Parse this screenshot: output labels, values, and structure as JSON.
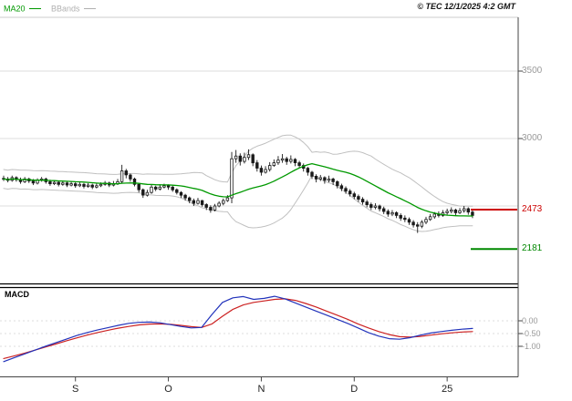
{
  "header": {
    "legend": [
      {
        "label": "MA20",
        "color": "#009900"
      },
      {
        "label": "BBands",
        "color": "#b0b0b0"
      }
    ],
    "copyright": "© TEC 12/1/2025 4:2 GMT"
  },
  "chart_data": {
    "type": "candlestick",
    "title": "",
    "ylim": [
      1900,
      3900
    ],
    "price_gridlines": [
      3500,
      3000,
      2500
    ],
    "candle_color": "#1a1a1a",
    "overlays": {
      "ma20_color": "#009900",
      "bbands_color": "#c0c0c0",
      "ma_period": 20,
      "bb_mult": 2
    },
    "price_axis": {
      "ticks": [
        {
          "text": "3500",
          "value": 3500
        },
        {
          "text": "3000",
          "value": 3000
        }
      ],
      "markers": [
        {
          "text": "2473",
          "value": 2473,
          "color": "#cc0000"
        },
        {
          "text": "2181",
          "value": 2181,
          "color": "#008800"
        }
      ]
    },
    "time_axis": {
      "ticks": [
        {
          "text": "S",
          "index": 17
        },
        {
          "text": "O",
          "index": 39
        },
        {
          "text": "N",
          "index": 61
        },
        {
          "text": "D",
          "index": 83
        },
        {
          "text": "25",
          "index": 105
        }
      ]
    },
    "candles_ohlc": [
      [
        2705,
        2725,
        2685,
        2700
      ],
      [
        2700,
        2715,
        2675,
        2690
      ],
      [
        2690,
        2725,
        2680,
        2710
      ],
      [
        2710,
        2720,
        2680,
        2695
      ],
      [
        2695,
        2710,
        2665,
        2680
      ],
      [
        2680,
        2715,
        2670,
        2700
      ],
      [
        2700,
        2710,
        2670,
        2685
      ],
      [
        2685,
        2700,
        2655,
        2670
      ],
      [
        2670,
        2705,
        2660,
        2690
      ],
      [
        2690,
        2715,
        2680,
        2700
      ],
      [
        2700,
        2710,
        2665,
        2680
      ],
      [
        2680,
        2695,
        2650,
        2665
      ],
      [
        2665,
        2690,
        2655,
        2675
      ],
      [
        2675,
        2685,
        2645,
        2660
      ],
      [
        2660,
        2685,
        2650,
        2670
      ],
      [
        2670,
        2680,
        2640,
        2655
      ],
      [
        2655,
        2680,
        2645,
        2665
      ],
      [
        2665,
        2675,
        2635,
        2650
      ],
      [
        2650,
        2680,
        2640,
        2660
      ],
      [
        2660,
        2670,
        2630,
        2645
      ],
      [
        2645,
        2670,
        2635,
        2655
      ],
      [
        2655,
        2665,
        2625,
        2640
      ],
      [
        2640,
        2670,
        2630,
        2650
      ],
      [
        2650,
        2675,
        2640,
        2660
      ],
      [
        2660,
        2685,
        2650,
        2670
      ],
      [
        2670,
        2680,
        2640,
        2655
      ],
      [
        2655,
        2685,
        2645,
        2665
      ],
      [
        2665,
        2700,
        2655,
        2680
      ],
      [
        2680,
        2805,
        2670,
        2760
      ],
      [
        2760,
        2775,
        2705,
        2730
      ],
      [
        2730,
        2740,
        2680,
        2700
      ],
      [
        2700,
        2710,
        2645,
        2660
      ],
      [
        2660,
        2670,
        2600,
        2620
      ],
      [
        2620,
        2630,
        2560,
        2580
      ],
      [
        2580,
        2620,
        2570,
        2600
      ],
      [
        2600,
        2655,
        2590,
        2640
      ],
      [
        2640,
        2650,
        2610,
        2625
      ],
      [
        2625,
        2660,
        2615,
        2640
      ],
      [
        2640,
        2665,
        2630,
        2650
      ],
      [
        2650,
        2660,
        2620,
        2640
      ],
      [
        2640,
        2650,
        2605,
        2620
      ],
      [
        2620,
        2630,
        2585,
        2600
      ],
      [
        2600,
        2610,
        2560,
        2580
      ],
      [
        2580,
        2590,
        2540,
        2560
      ],
      [
        2560,
        2570,
        2520,
        2540
      ],
      [
        2540,
        2555,
        2500,
        2520
      ],
      [
        2520,
        2560,
        2510,
        2540
      ],
      [
        2540,
        2545,
        2495,
        2510
      ],
      [
        2510,
        2520,
        2470,
        2490
      ],
      [
        2490,
        2505,
        2450,
        2470
      ],
      [
        2470,
        2515,
        2460,
        2500
      ],
      [
        2500,
        2535,
        2490,
        2520
      ],
      [
        2520,
        2555,
        2505,
        2540
      ],
      [
        2540,
        2580,
        2530,
        2560
      ],
      [
        2560,
        2900,
        2520,
        2850
      ],
      [
        2850,
        2915,
        2820,
        2870
      ],
      [
        2870,
        2890,
        2800,
        2830
      ],
      [
        2830,
        2895,
        2815,
        2860
      ],
      [
        2860,
        2920,
        2840,
        2880
      ],
      [
        2880,
        2890,
        2795,
        2820
      ],
      [
        2820,
        2840,
        2755,
        2780
      ],
      [
        2780,
        2800,
        2725,
        2750
      ],
      [
        2750,
        2795,
        2740,
        2770
      ],
      [
        2770,
        2825,
        2755,
        2800
      ],
      [
        2800,
        2845,
        2790,
        2820
      ],
      [
        2820,
        2870,
        2805,
        2840
      ],
      [
        2840,
        2885,
        2820,
        2850
      ],
      [
        2850,
        2865,
        2805,
        2830
      ],
      [
        2830,
        2875,
        2815,
        2845
      ],
      [
        2845,
        2855,
        2795,
        2820
      ],
      [
        2820,
        2835,
        2780,
        2800
      ],
      [
        2800,
        2815,
        2755,
        2780
      ],
      [
        2780,
        2790,
        2725,
        2750
      ],
      [
        2750,
        2760,
        2700,
        2720
      ],
      [
        2720,
        2735,
        2675,
        2700
      ],
      [
        2700,
        2730,
        2685,
        2710
      ],
      [
        2710,
        2720,
        2665,
        2690
      ],
      [
        2690,
        2725,
        2675,
        2700
      ],
      [
        2700,
        2710,
        2655,
        2680
      ],
      [
        2680,
        2690,
        2630,
        2650
      ],
      [
        2650,
        2665,
        2610,
        2630
      ],
      [
        2630,
        2645,
        2590,
        2610
      ],
      [
        2610,
        2625,
        2570,
        2590
      ],
      [
        2590,
        2605,
        2550,
        2570
      ],
      [
        2570,
        2585,
        2530,
        2550
      ],
      [
        2550,
        2565,
        2510,
        2530
      ],
      [
        2530,
        2545,
        2490,
        2510
      ],
      [
        2510,
        2525,
        2470,
        2490
      ],
      [
        2490,
        2520,
        2475,
        2500
      ],
      [
        2500,
        2510,
        2460,
        2480
      ],
      [
        2480,
        2495,
        2440,
        2460
      ],
      [
        2460,
        2475,
        2420,
        2440
      ],
      [
        2440,
        2470,
        2425,
        2450
      ],
      [
        2450,
        2460,
        2410,
        2430
      ],
      [
        2430,
        2445,
        2390,
        2410
      ],
      [
        2410,
        2430,
        2380,
        2400
      ],
      [
        2400,
        2415,
        2360,
        2380
      ],
      [
        2380,
        2395,
        2340,
        2360
      ],
      [
        2360,
        2380,
        2300,
        2350
      ],
      [
        2350,
        2395,
        2335,
        2380
      ],
      [
        2380,
        2420,
        2365,
        2400
      ],
      [
        2400,
        2440,
        2390,
        2420
      ],
      [
        2420,
        2455,
        2405,
        2440
      ],
      [
        2440,
        2460,
        2415,
        2430
      ],
      [
        2430,
        2470,
        2420,
        2450
      ],
      [
        2450,
        2480,
        2435,
        2460
      ],
      [
        2460,
        2490,
        2445,
        2470
      ],
      [
        2470,
        2480,
        2430,
        2450
      ],
      [
        2450,
        2485,
        2440,
        2465
      ],
      [
        2465,
        2500,
        2450,
        2480
      ],
      [
        2480,
        2490,
        2435,
        2455
      ],
      [
        2455,
        2470,
        2410,
        2430
      ]
    ],
    "macd": {
      "label": "MACD",
      "ylim": [
        -2.1,
        1.3
      ],
      "macd_color": "#2233bb",
      "signal_color": "#cc2222",
      "ticks": [
        {
          "text": "0.00",
          "value": 0
        },
        {
          "text": "-0.50",
          "value": -0.5
        },
        {
          "text": "-1.00",
          "value": -1
        }
      ],
      "macd_line": [
        -1.6,
        -1.45,
        -1.3,
        -1.15,
        -1.0,
        -0.86,
        -0.72,
        -0.58,
        -0.46,
        -0.36,
        -0.27,
        -0.18,
        -0.1,
        -0.06,
        -0.05,
        -0.08,
        -0.15,
        -0.22,
        -0.28,
        -0.26,
        0.25,
        0.72,
        0.9,
        0.95,
        0.84,
        0.88,
        0.96,
        0.86,
        0.7,
        0.54,
        0.38,
        0.22,
        0.06,
        -0.1,
        -0.28,
        -0.46,
        -0.6,
        -0.7,
        -0.72,
        -0.66,
        -0.56,
        -0.48,
        -0.42,
        -0.37,
        -0.33,
        -0.3
      ],
      "signal_line": [
        -1.48,
        -1.38,
        -1.27,
        -1.15,
        -1.03,
        -0.91,
        -0.79,
        -0.67,
        -0.56,
        -0.46,
        -0.37,
        -0.29,
        -0.22,
        -0.16,
        -0.13,
        -0.12,
        -0.14,
        -0.18,
        -0.23,
        -0.26,
        -0.12,
        0.18,
        0.45,
        0.62,
        0.72,
        0.78,
        0.84,
        0.86,
        0.8,
        0.68,
        0.54,
        0.38,
        0.22,
        0.06,
        -0.12,
        -0.28,
        -0.42,
        -0.54,
        -0.62,
        -0.64,
        -0.61,
        -0.56,
        -0.51,
        -0.47,
        -0.44,
        -0.42
      ]
    }
  }
}
